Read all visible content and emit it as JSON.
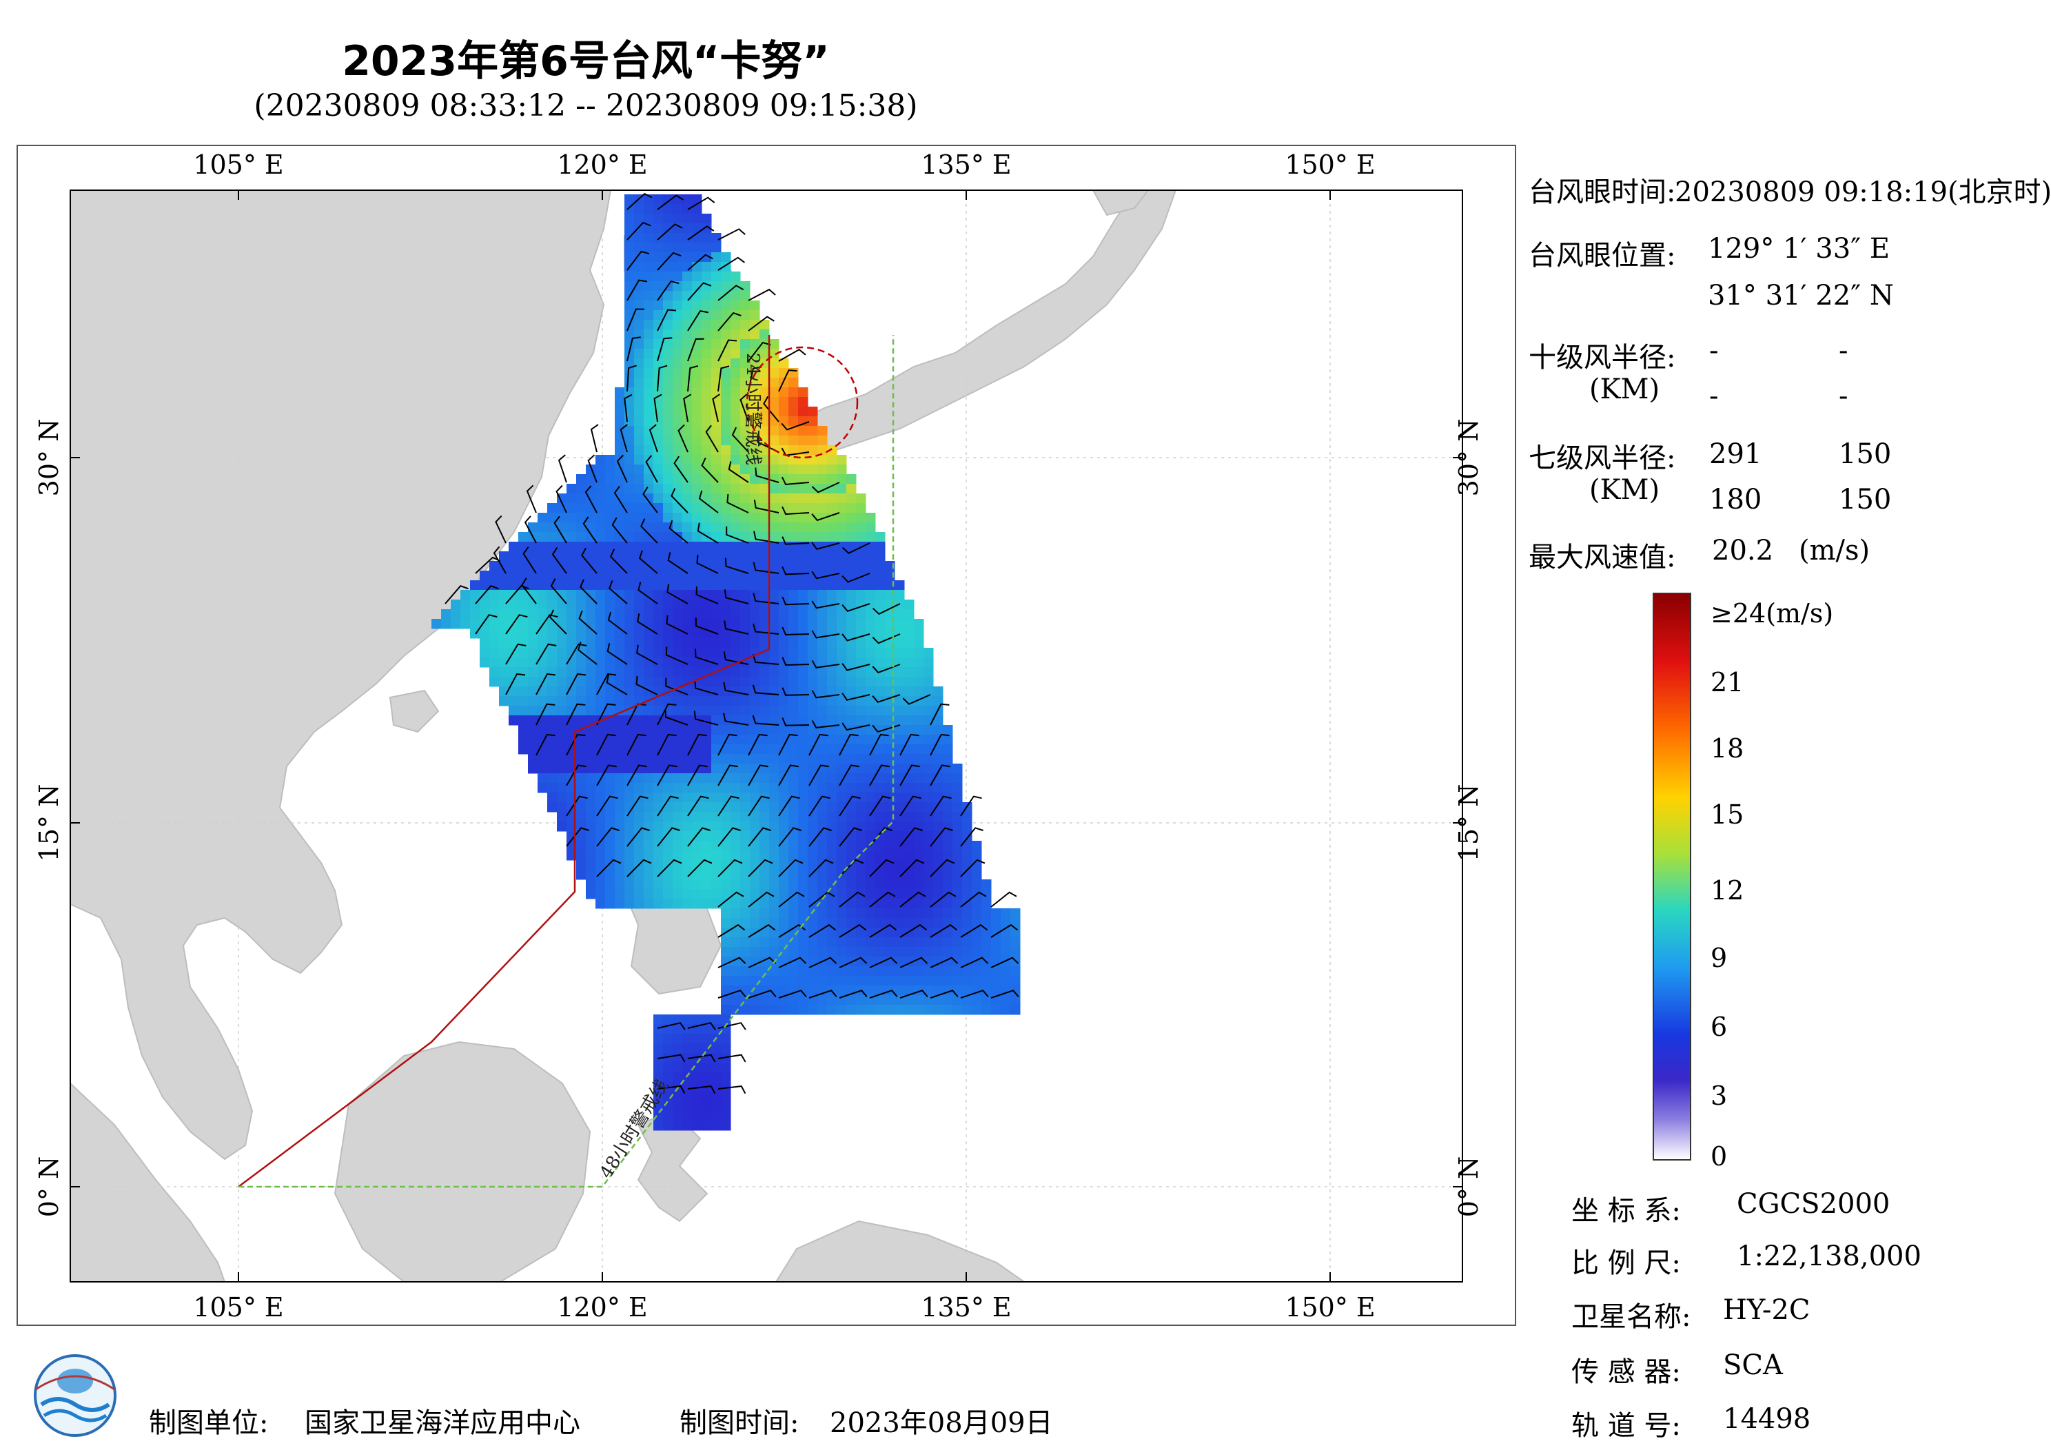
{
  "header": {
    "title": "2023年第6号台风“卡努”",
    "subtitle": "(20230809 08:33:12 -- 20230809 09:15:38)"
  },
  "map": {
    "top_lon_labels": [
      "105° E",
      "120° E",
      "135° E",
      "150° E"
    ],
    "bottom_lon_labels": [
      "105° E",
      "120° E",
      "135° E",
      "150° E"
    ],
    "left_lat_labels": [
      "30° N",
      "15° N",
      "0° N"
    ],
    "right_lat_labels": [
      "30° N",
      "15° N",
      "0° N"
    ],
    "warning_24h_label": "24小时警戒线",
    "warning_48h_label": "48小时警戒线",
    "colors": {
      "land": "#d4d4d4",
      "ocean": "#ffffff",
      "line_24h": "#b01010",
      "line_48h": "#6cc04a",
      "wind_barb": "#000000"
    }
  },
  "info": {
    "eye_time_label": "台风眼时间:",
    "eye_time_value": "20230809 09:18:19(北京时)",
    "eye_pos_label": "台风眼位置:",
    "eye_lon": "129° 1′ 33″ E",
    "eye_lat": "31° 31′ 22″ N",
    "r10_label": "十级风半径:",
    "r10_unit": "(KM)",
    "r10_values": [
      "-",
      "-",
      "-",
      "-"
    ],
    "r7_label": "七级风半径:",
    "r7_unit": "(KM)",
    "r7_values": [
      "291",
      "150",
      "180",
      "150"
    ],
    "max_wind_label": "最大风速值:",
    "max_wind_value": "20.2",
    "max_wind_unit": "(m/s)"
  },
  "colorbar": {
    "labels": [
      "≥24(m/s)",
      "21",
      "18",
      "15",
      "12",
      "9",
      "6",
      "3",
      "0"
    ]
  },
  "meta": {
    "crs_label": "坐 标 系:",
    "crs_value": "CGCS2000",
    "scale_label": "比 例 尺:",
    "scale_value": "1:22,138,000",
    "satellite_label": "卫星名称:",
    "satellite_value": "HY-2C",
    "sensor_label": "传 感 器:",
    "sensor_value": "SCA",
    "orbit_label": "轨 道 号:",
    "orbit_value": "14498"
  },
  "footer": {
    "org_label": "制图单位:",
    "org_value": "国家卫星海洋应用中心",
    "date_label": "制图时间:",
    "date_value": "2023年08月09日"
  }
}
